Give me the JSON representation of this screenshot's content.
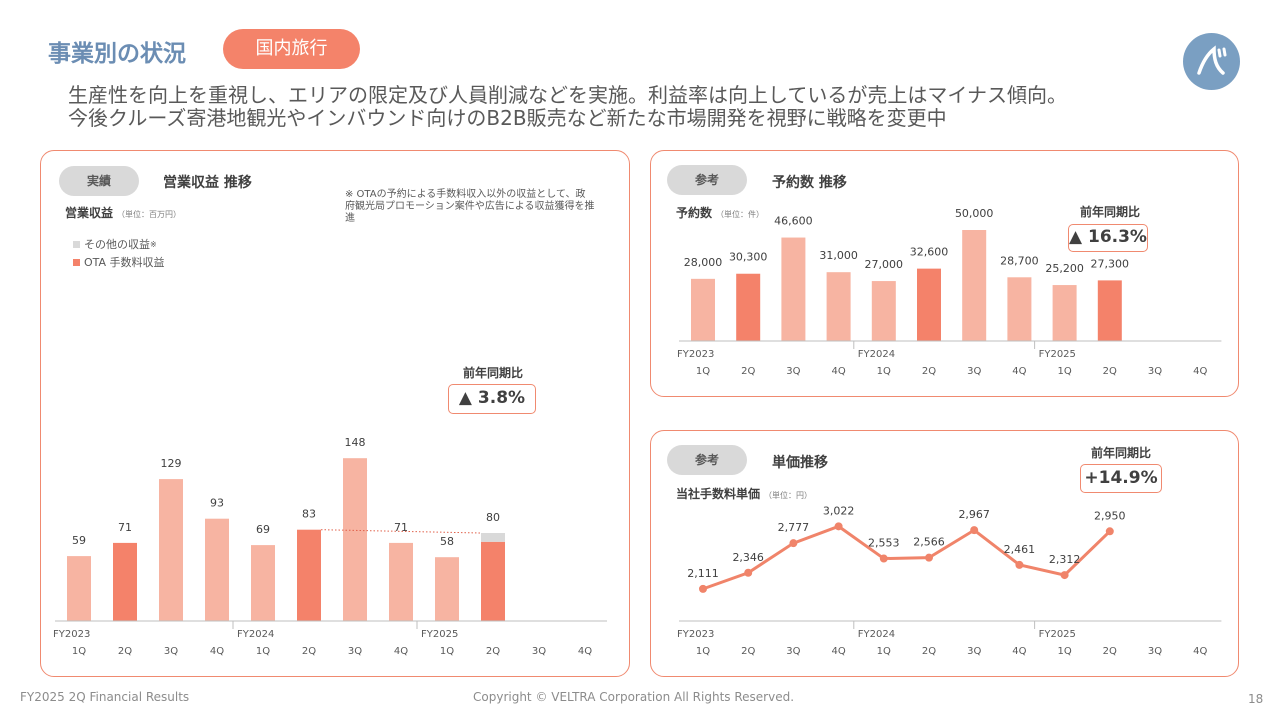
{
  "header": {
    "title": "事業別の状況",
    "tag": "国内旅行",
    "subtitle_line1": "生産性を向上を重視し、エリアの限定及び人員削減などを実施。利益率は向上しているが売上はマイナス傾向。",
    "subtitle_line2": "今後クルーズ寄港地観光やインバウンド向けのB2B販売など新たな市場開発を視野に戦略を変更中"
  },
  "footer": {
    "left": "FY2025 2Q Financial Results",
    "center": "Copyright © VELTRA Corporation All Rights Reserved.",
    "page": "18"
  },
  "colors": {
    "light_bar": "#f7b4a2",
    "highlight_bar": "#f4826a",
    "other_bar": "#d9d9d9",
    "line": "#f0846a",
    "title_blue": "#6b8db3",
    "accent": "#f4836a"
  },
  "panels": {
    "revenue": {
      "pill": "実績",
      "title": "営業収益 推移",
      "ylabel": "営業収益",
      "unit": "（単位：百万円）",
      "note": "※ OTAの予約による手数料収入以外の収益として、政府観光局プロモーション案件や広告による収益獲得を推進",
      "legend_other": "その他の収益",
      "legend_other_mark": "※",
      "legend_ota": "OTA 手数料収益",
      "yoy_label": "前年同期比",
      "yoy_value": "▲ 3.8%"
    },
    "bookings": {
      "pill": "参考",
      "title": "予約数 推移",
      "ylabel": "予約数",
      "unit": "（単位：件）",
      "yoy_label": "前年同期比",
      "yoy_value": "▲ 16.3%"
    },
    "unitprice": {
      "pill": "参考",
      "title": "単価推移",
      "ylabel": "当社手数料単価",
      "unit": "（単位：円）",
      "yoy_label": "前年同期比",
      "yoy_value": "+14.9%"
    }
  },
  "chart_data": [
    {
      "type": "bar",
      "stacked": true,
      "categories": [
        "1Q",
        "2Q",
        "3Q",
        "4Q",
        "1Q",
        "2Q",
        "3Q",
        "4Q",
        "1Q",
        "2Q",
        "3Q",
        "4Q"
      ],
      "groups": [
        "FY2023",
        "FY2024",
        "FY2025"
      ],
      "series": [
        {
          "name": "OTA 手数料収益",
          "values": [
            59,
            71,
            129,
            93,
            69,
            83,
            148,
            71,
            58,
            72,
            null,
            null
          ]
        },
        {
          "name": "その他の収益",
          "values": [
            0,
            0,
            0,
            0,
            0,
            0,
            0,
            0,
            0,
            8,
            null,
            null
          ]
        }
      ],
      "totals": [
        59,
        71,
        129,
        93,
        69,
        83,
        148,
        71,
        58,
        80,
        null,
        null
      ],
      "ylim": [
        0,
        165
      ],
      "highlight": [
        1,
        5,
        9
      ]
    },
    {
      "type": "bar",
      "categories": [
        "1Q",
        "2Q",
        "3Q",
        "4Q",
        "1Q",
        "2Q",
        "3Q",
        "4Q",
        "1Q",
        "2Q",
        "3Q",
        "4Q"
      ],
      "groups": [
        "FY2023",
        "FY2024",
        "FY2025"
      ],
      "values": [
        28000,
        30300,
        46600,
        31000,
        27000,
        32600,
        50000,
        28700,
        25200,
        27300,
        null,
        null
      ],
      "labels": [
        "28,000",
        "30,300",
        "46,600",
        "31,000",
        "27,000",
        "32,600",
        "50,000",
        "28,700",
        "25,200",
        "27,300"
      ],
      "ylim": [
        0,
        56000
      ],
      "highlight": [
        1,
        5,
        9
      ]
    },
    {
      "type": "line",
      "categories": [
        "1Q",
        "2Q",
        "3Q",
        "4Q",
        "1Q",
        "2Q",
        "3Q",
        "4Q",
        "1Q",
        "2Q",
        "3Q",
        "4Q"
      ],
      "groups": [
        "FY2023",
        "FY2024",
        "FY2025"
      ],
      "values": [
        2111,
        2346,
        2777,
        3022,
        2553,
        2566,
        2967,
        2461,
        2312,
        2950,
        null,
        null
      ],
      "labels": [
        "2,111",
        "2,346",
        "2,777",
        "3,022",
        "2,553",
        "2,566",
        "2,967",
        "2,461",
        "2,312",
        "2,950"
      ],
      "ylim": [
        1550,
        3250
      ]
    }
  ]
}
